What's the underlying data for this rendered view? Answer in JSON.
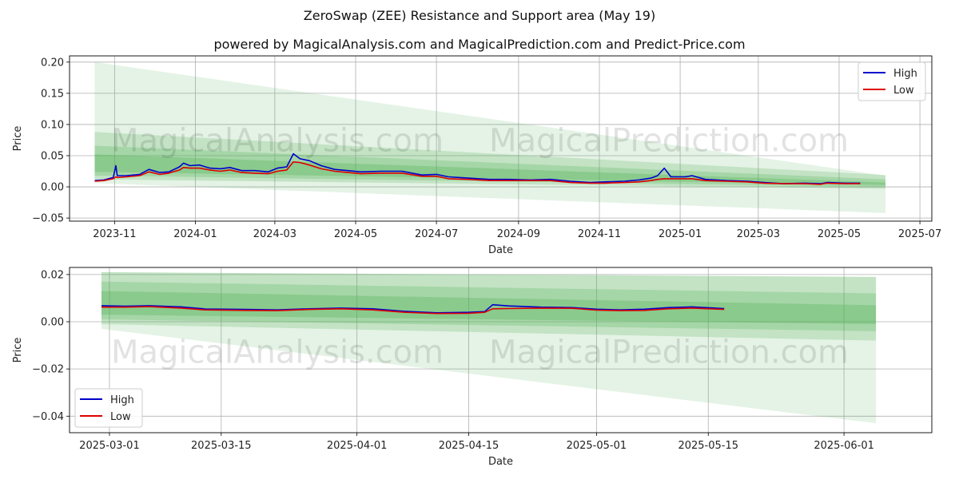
{
  "title": "ZeroSwap (ZEE) Resistance and Support area (May 19)",
  "subtitle": "powered by MagicalAnalysis.com and MagicalPrediction.com and Predict-Price.com",
  "watermarks": [
    "MagicalAnalysis.com",
    "MagicalPrediction.com"
  ],
  "colors": {
    "high": "#0000cc",
    "low": "#dd0000",
    "band": "#4caf50",
    "grid": "#b0b0b0"
  },
  "chart_data": [
    {
      "type": "line",
      "name": "full-history",
      "xlabel": "Date",
      "ylabel": "Price",
      "ylim": [
        -0.055,
        0.21
      ],
      "xlim": [
        "2023-09-28",
        "2025-07-10"
      ],
      "yticks": [
        -0.05,
        0.0,
        0.05,
        0.1,
        0.15,
        0.2
      ],
      "ytick_labels": [
        "−0.05",
        "0.00",
        "0.05",
        "0.10",
        "0.15",
        "0.20"
      ],
      "xticks": [
        "2023-11-01",
        "2024-01-01",
        "2024-03-01",
        "2024-05-01",
        "2024-07-01",
        "2024-09-01",
        "2024-11-01",
        "2025-01-01",
        "2025-03-01",
        "2025-05-01",
        "2025-07-01"
      ],
      "xtick_labels": [
        "2023-11",
        "2024-01",
        "2024-03",
        "2024-05",
        "2024-07",
        "2024-09",
        "2024-11",
        "2025-01",
        "2025-03",
        "2025-05",
        "2025-07"
      ],
      "legend": {
        "position": "top-right",
        "entries": [
          "High",
          "Low"
        ]
      },
      "bands": [
        {
          "start": "2023-10-17",
          "end": "2025-06-05",
          "top": [
            0.2,
            0.018
          ],
          "bottom": [
            0.006,
            -0.042
          ],
          "alpha": 0.15
        },
        {
          "start": "2023-10-17",
          "end": "2025-06-05",
          "top": [
            0.088,
            0.019
          ],
          "bottom": [
            0.012,
            -0.003
          ],
          "alpha": 0.22
        },
        {
          "start": "2023-10-17",
          "end": "2025-06-05",
          "top": [
            0.066,
            0.012
          ],
          "bottom": [
            0.018,
            0.0
          ],
          "alpha": 0.25
        },
        {
          "start": "2023-10-17",
          "end": "2025-06-05",
          "top": [
            0.052,
            0.007
          ],
          "bottom": [
            0.024,
            0.003
          ],
          "alpha": 0.3
        }
      ],
      "series": [
        {
          "name": "High",
          "points": [
            [
              "2023-10-17",
              0.01
            ],
            [
              "2023-10-24",
              0.011
            ],
            [
              "2023-10-31",
              0.015
            ],
            [
              "2023-11-02",
              0.034
            ],
            [
              "2023-11-03",
              0.018
            ],
            [
              "2023-11-10",
              0.018
            ],
            [
              "2023-11-20",
              0.02
            ],
            [
              "2023-11-27",
              0.028
            ],
            [
              "2023-12-05",
              0.023
            ],
            [
              "2023-12-12",
              0.024
            ],
            [
              "2023-12-20",
              0.032
            ],
            [
              "2023-12-23",
              0.038
            ],
            [
              "2023-12-28",
              0.034
            ],
            [
              "2024-01-04",
              0.035
            ],
            [
              "2024-01-12",
              0.03
            ],
            [
              "2024-01-20",
              0.029
            ],
            [
              "2024-01-27",
              0.031
            ],
            [
              "2024-02-05",
              0.026
            ],
            [
              "2024-02-15",
              0.026
            ],
            [
              "2024-02-25",
              0.024
            ],
            [
              "2024-03-03",
              0.03
            ],
            [
              "2024-03-10",
              0.032
            ],
            [
              "2024-03-15",
              0.053
            ],
            [
              "2024-03-20",
              0.045
            ],
            [
              "2024-03-27",
              0.042
            ],
            [
              "2024-04-05",
              0.034
            ],
            [
              "2024-04-15",
              0.028
            ],
            [
              "2024-04-25",
              0.026
            ],
            [
              "2024-05-05",
              0.024
            ],
            [
              "2024-05-20",
              0.025
            ],
            [
              "2024-06-05",
              0.025
            ],
            [
              "2024-06-20",
              0.019
            ],
            [
              "2024-07-01",
              0.02
            ],
            [
              "2024-07-10",
              0.016
            ],
            [
              "2024-07-25",
              0.014
            ],
            [
              "2024-08-10",
              0.012
            ],
            [
              "2024-08-25",
              0.012
            ],
            [
              "2024-09-10",
              0.011
            ],
            [
              "2024-09-25",
              0.012
            ],
            [
              "2024-10-10",
              0.009
            ],
            [
              "2024-10-25",
              0.007
            ],
            [
              "2024-11-05",
              0.008
            ],
            [
              "2024-11-20",
              0.009
            ],
            [
              "2024-12-01",
              0.011
            ],
            [
              "2024-12-10",
              0.014
            ],
            [
              "2024-12-15",
              0.018
            ],
            [
              "2024-12-20",
              0.03
            ],
            [
              "2024-12-25",
              0.016
            ],
            [
              "2025-01-05",
              0.016
            ],
            [
              "2025-01-10",
              0.018
            ],
            [
              "2025-01-20",
              0.012
            ],
            [
              "2025-02-05",
              0.01
            ],
            [
              "2025-02-20",
              0.009
            ],
            [
              "2025-03-05",
              0.007
            ],
            [
              "2025-03-20",
              0.005
            ],
            [
              "2025-04-05",
              0.006
            ],
            [
              "2025-04-17",
              0.005
            ],
            [
              "2025-04-22",
              0.007
            ],
            [
              "2025-05-05",
              0.006
            ],
            [
              "2025-05-17",
              0.006
            ]
          ]
        },
        {
          "name": "Low",
          "points": [
            [
              "2023-10-17",
              0.009
            ],
            [
              "2023-10-24",
              0.01
            ],
            [
              "2023-10-31",
              0.013
            ],
            [
              "2023-11-02",
              0.016
            ],
            [
              "2023-11-03",
              0.015
            ],
            [
              "2023-11-10",
              0.016
            ],
            [
              "2023-11-20",
              0.018
            ],
            [
              "2023-11-27",
              0.024
            ],
            [
              "2023-12-05",
              0.02
            ],
            [
              "2023-12-12",
              0.022
            ],
            [
              "2023-12-20",
              0.027
            ],
            [
              "2023-12-23",
              0.031
            ],
            [
              "2023-12-28",
              0.03
            ],
            [
              "2024-01-04",
              0.03
            ],
            [
              "2024-01-12",
              0.027
            ],
            [
              "2024-01-20",
              0.025
            ],
            [
              "2024-01-27",
              0.027
            ],
            [
              "2024-02-05",
              0.023
            ],
            [
              "2024-02-15",
              0.022
            ],
            [
              "2024-02-25",
              0.021
            ],
            [
              "2024-03-03",
              0.025
            ],
            [
              "2024-03-10",
              0.027
            ],
            [
              "2024-03-15",
              0.04
            ],
            [
              "2024-03-20",
              0.039
            ],
            [
              "2024-03-27",
              0.035
            ],
            [
              "2024-04-05",
              0.029
            ],
            [
              "2024-04-15",
              0.025
            ],
            [
              "2024-04-25",
              0.023
            ],
            [
              "2024-05-05",
              0.021
            ],
            [
              "2024-05-20",
              0.022
            ],
            [
              "2024-06-05",
              0.022
            ],
            [
              "2024-06-20",
              0.017
            ],
            [
              "2024-07-01",
              0.017
            ],
            [
              "2024-07-10",
              0.013
            ],
            [
              "2024-07-25",
              0.012
            ],
            [
              "2024-08-10",
              0.01
            ],
            [
              "2024-08-25",
              0.01
            ],
            [
              "2024-09-10",
              0.01
            ],
            [
              "2024-09-25",
              0.01
            ],
            [
              "2024-10-10",
              0.007
            ],
            [
              "2024-10-25",
              0.006
            ],
            [
              "2024-11-05",
              0.006
            ],
            [
              "2024-11-20",
              0.007
            ],
            [
              "2024-12-01",
              0.008
            ],
            [
              "2024-12-10",
              0.01
            ],
            [
              "2024-12-15",
              0.012
            ],
            [
              "2024-12-20",
              0.013
            ],
            [
              "2024-12-25",
              0.013
            ],
            [
              "2025-01-05",
              0.013
            ],
            [
              "2025-01-10",
              0.013
            ],
            [
              "2025-01-20",
              0.01
            ],
            [
              "2025-02-05",
              0.009
            ],
            [
              "2025-02-20",
              0.008
            ],
            [
              "2025-03-05",
              0.006
            ],
            [
              "2025-03-20",
              0.005
            ],
            [
              "2025-04-05",
              0.005
            ],
            [
              "2025-04-17",
              0.004
            ],
            [
              "2025-04-22",
              0.006
            ],
            [
              "2025-05-05",
              0.005
            ],
            [
              "2025-05-17",
              0.005
            ]
          ]
        }
      ]
    },
    {
      "type": "line",
      "name": "recent-zoom",
      "xlabel": "Date",
      "ylabel": "Price",
      "ylim": [
        -0.047,
        0.023
      ],
      "xlim": [
        "2025-02-24",
        "2025-06-12"
      ],
      "yticks": [
        -0.04,
        -0.02,
        0.0,
        0.02
      ],
      "ytick_labels": [
        "−0.04",
        "−0.02",
        "0.00",
        "0.02"
      ],
      "xticks": [
        "2025-03-01",
        "2025-03-15",
        "2025-04-01",
        "2025-04-15",
        "2025-05-01",
        "2025-05-15",
        "2025-06-01"
      ],
      "xtick_labels": [
        "2025-03-01",
        "2025-03-15",
        "2025-04-01",
        "2025-04-15",
        "2025-05-01",
        "2025-05-15",
        "2025-06-01"
      ],
      "legend": {
        "position": "bottom-left",
        "entries": [
          "High",
          "Low"
        ]
      },
      "bands": [
        {
          "start": "2025-02-28",
          "end": "2025-06-05",
          "top": [
            0.021,
            0.019
          ],
          "bottom": [
            -0.003,
            -0.043
          ],
          "alpha": 0.15
        },
        {
          "start": "2025-02-28",
          "end": "2025-06-05",
          "top": [
            0.021,
            0.019
          ],
          "bottom": [
            -0.001,
            -0.008
          ],
          "alpha": 0.22
        },
        {
          "start": "2025-02-28",
          "end": "2025-06-05",
          "top": [
            0.017,
            0.012
          ],
          "bottom": [
            0.001,
            -0.004
          ],
          "alpha": 0.25
        },
        {
          "start": "2025-02-28",
          "end": "2025-06-05",
          "top": [
            0.013,
            0.007
          ],
          "bottom": [
            0.003,
            -0.001
          ],
          "alpha": 0.3
        }
      ],
      "series": [
        {
          "name": "High",
          "points": [
            [
              "2025-02-28",
              0.0068
            ],
            [
              "2025-03-03",
              0.0066
            ],
            [
              "2025-03-06",
              0.0068
            ],
            [
              "2025-03-10",
              0.0063
            ],
            [
              "2025-03-13",
              0.0054
            ],
            [
              "2025-03-18",
              0.0052
            ],
            [
              "2025-03-22",
              0.005
            ],
            [
              "2025-03-26",
              0.0055
            ],
            [
              "2025-03-30",
              0.0058
            ],
            [
              "2025-04-03",
              0.0055
            ],
            [
              "2025-04-07",
              0.0044
            ],
            [
              "2025-04-11",
              0.0038
            ],
            [
              "2025-04-15",
              0.004
            ],
            [
              "2025-04-17",
              0.0043
            ],
            [
              "2025-04-18",
              0.0072
            ],
            [
              "2025-04-20",
              0.0067
            ],
            [
              "2025-04-24",
              0.0062
            ],
            [
              "2025-04-28",
              0.006
            ],
            [
              "2025-05-01",
              0.0053
            ],
            [
              "2025-05-04",
              0.005
            ],
            [
              "2025-05-07",
              0.0053
            ],
            [
              "2025-05-10",
              0.006
            ],
            [
              "2025-05-13",
              0.0063
            ],
            [
              "2025-05-17",
              0.0056
            ]
          ]
        },
        {
          "name": "Low",
          "points": [
            [
              "2025-02-28",
              0.0062
            ],
            [
              "2025-03-03",
              0.0062
            ],
            [
              "2025-03-06",
              0.0064
            ],
            [
              "2025-03-10",
              0.0058
            ],
            [
              "2025-03-13",
              0.005
            ],
            [
              "2025-03-18",
              0.0048
            ],
            [
              "2025-03-22",
              0.0047
            ],
            [
              "2025-03-26",
              0.0052
            ],
            [
              "2025-03-30",
              0.0055
            ],
            [
              "2025-04-03",
              0.005
            ],
            [
              "2025-04-07",
              0.004
            ],
            [
              "2025-04-11",
              0.0035
            ],
            [
              "2025-04-15",
              0.0036
            ],
            [
              "2025-04-17",
              0.004
            ],
            [
              "2025-04-18",
              0.0055
            ],
            [
              "2025-04-20",
              0.0056
            ],
            [
              "2025-04-24",
              0.0058
            ],
            [
              "2025-04-28",
              0.0057
            ],
            [
              "2025-05-01",
              0.0049
            ],
            [
              "2025-05-04",
              0.0047
            ],
            [
              "2025-05-07",
              0.0048
            ],
            [
              "2025-05-10",
              0.0055
            ],
            [
              "2025-05-13",
              0.0058
            ],
            [
              "2025-05-17",
              0.0052
            ]
          ]
        }
      ]
    }
  ]
}
